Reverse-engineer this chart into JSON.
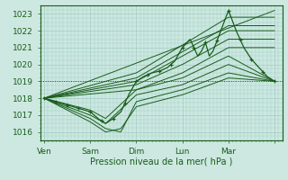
{
  "xlabel": "Pression niveau de la mer( hPa )",
  "ylim": [
    1015.5,
    1023.5
  ],
  "xlim": [
    0,
    126
  ],
  "yticks": [
    1016,
    1017,
    1018,
    1019,
    1020,
    1021,
    1022,
    1023
  ],
  "xtick_positions": [
    2,
    26,
    50,
    74,
    98,
    122
  ],
  "xtick_labels": [
    "Ven",
    "Sam",
    "Dim",
    "Lun",
    "Mar",
    ""
  ],
  "bg_color": "#cce8e0",
  "grid_color": "#a0ccc4",
  "line_color": "#1a5c1a",
  "hline_y": 1019.0,
  "start_x": 2,
  "end_x": 122
}
